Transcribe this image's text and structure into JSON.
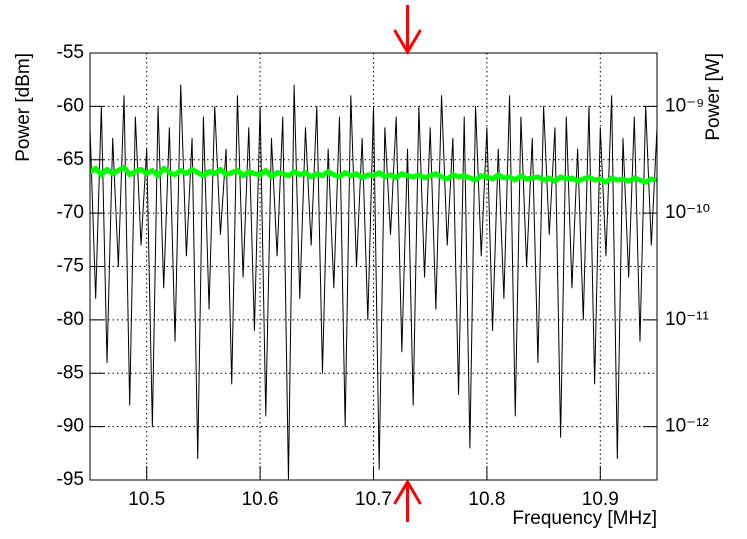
{
  "chart_data": {
    "type": "line",
    "ylabel": "Power [dBm]",
    "xlabel": "Frequency [MHz]",
    "y2label": "Power [W]",
    "xlim": [
      10.45,
      10.95
    ],
    "xticks": [
      10.5,
      10.6,
      10.7,
      10.8,
      10.9
    ],
    "ylim": [
      -55,
      -95
    ],
    "yticks": [
      -55,
      -60,
      -65,
      -70,
      -75,
      -80,
      -85,
      -90,
      -95
    ],
    "y2lim": [
      3.1623e-09,
      3.1623e-13
    ],
    "y2log": true,
    "y2ticks": [
      {
        "value": 1e-09,
        "label": "10⁻⁹"
      },
      {
        "value": 1e-10,
        "label": "10⁻¹⁰"
      },
      {
        "value": 1e-11,
        "label": "10⁻¹¹"
      },
      {
        "value": 1e-12,
        "label": "10⁻¹²"
      }
    ],
    "grid": true,
    "markers": [
      10.73
    ],
    "marker_color": "#ff0000",
    "x": [
      10.45,
      10.455,
      10.46,
      10.465,
      10.47,
      10.475,
      10.48,
      10.485,
      10.49,
      10.495,
      10.5,
      10.505,
      10.51,
      10.515,
      10.52,
      10.525,
      10.53,
      10.535,
      10.54,
      10.545,
      10.55,
      10.555,
      10.56,
      10.565,
      10.57,
      10.575,
      10.58,
      10.585,
      10.59,
      10.595,
      10.6,
      10.605,
      10.61,
      10.615,
      10.62,
      10.625,
      10.63,
      10.635,
      10.64,
      10.645,
      10.65,
      10.655,
      10.66,
      10.665,
      10.67,
      10.675,
      10.68,
      10.685,
      10.69,
      10.695,
      10.7,
      10.705,
      10.71,
      10.715,
      10.72,
      10.725,
      10.73,
      10.735,
      10.74,
      10.745,
      10.75,
      10.755,
      10.76,
      10.765,
      10.77,
      10.775,
      10.78,
      10.785,
      10.79,
      10.795,
      10.8,
      10.805,
      10.81,
      10.815,
      10.82,
      10.825,
      10.83,
      10.835,
      10.84,
      10.845,
      10.85,
      10.855,
      10.86,
      10.865,
      10.87,
      10.875,
      10.88,
      10.885,
      10.89,
      10.895,
      10.9,
      10.905,
      10.91,
      10.915,
      10.92,
      10.925,
      10.93,
      10.935,
      10.94,
      10.945,
      10.95
    ],
    "series": [
      {
        "color": "#000000",
        "width": 1,
        "values": [
          -62,
          -78,
          -60,
          -84,
          -63,
          -75,
          -59,
          -88,
          -61,
          -73,
          -64,
          -90,
          -60,
          -77,
          -62,
          -82,
          -58,
          -74,
          -63,
          -93,
          -61,
          -79,
          -60,
          -72,
          -64,
          -86,
          -59,
          -76,
          -62,
          -81,
          -60,
          -89,
          -63,
          -74,
          -61,
          -95,
          -58,
          -78,
          -62,
          -73,
          -60,
          -85,
          -64,
          -77,
          -61,
          -90,
          -59,
          -75,
          -63,
          -80,
          -60,
          -94,
          -62,
          -72,
          -61,
          -83,
          -64,
          -88,
          -60,
          -76,
          -62,
          -79,
          -59,
          -73,
          -63,
          -87,
          -61,
          -92,
          -60,
          -74,
          -62,
          -81,
          -64,
          -78,
          -59,
          -89,
          -61,
          -75,
          -63,
          -84,
          -60,
          -72,
          -62,
          -91,
          -61,
          -77,
          -64,
          -80,
          -60,
          -86,
          -62,
          -74,
          -59,
          -93,
          -63,
          -76,
          -61,
          -82,
          -60,
          -73,
          -62
        ]
      },
      {
        "color": "#00ff00",
        "width": 5,
        "values": [
          -66.2,
          -65.8,
          -66.4,
          -65.9,
          -66.3,
          -66.0,
          -65.7,
          -66.4,
          -66.1,
          -65.9,
          -66.3,
          -66.0,
          -66.5,
          -65.8,
          -66.2,
          -66.4,
          -66.0,
          -66.3,
          -65.9,
          -66.2,
          -66.5,
          -66.1,
          -66.3,
          -65.9,
          -66.4,
          -66.2,
          -66.0,
          -66.5,
          -66.1,
          -66.3,
          -66.4,
          -66.0,
          -66.6,
          -66.2,
          -66.3,
          -66.5,
          -66.1,
          -66.4,
          -66.2,
          -66.6,
          -66.3,
          -66.5,
          -66.1,
          -66.4,
          -66.6,
          -66.2,
          -66.5,
          -66.3,
          -66.7,
          -66.4,
          -66.5,
          -66.2,
          -66.6,
          -66.4,
          -66.7,
          -66.3,
          -66.5,
          -66.6,
          -66.4,
          -66.7,
          -66.5,
          -66.3,
          -66.6,
          -66.8,
          -66.4,
          -66.6,
          -66.5,
          -66.7,
          -66.9,
          -66.5,
          -66.6,
          -66.8,
          -66.4,
          -66.7,
          -66.6,
          -66.9,
          -66.5,
          -66.8,
          -66.7,
          -66.6,
          -66.9,
          -66.7,
          -67.0,
          -66.6,
          -66.8,
          -66.7,
          -67.0,
          -66.8,
          -66.6,
          -66.9,
          -66.8,
          -67.1,
          -66.7,
          -66.9,
          -66.8,
          -67.0,
          -66.7,
          -66.9,
          -67.1,
          -66.8,
          -66.9
        ]
      }
    ]
  }
}
